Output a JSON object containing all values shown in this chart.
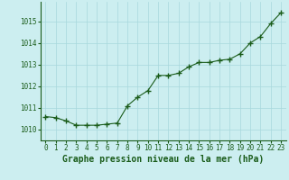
{
  "x": [
    0,
    1,
    2,
    3,
    4,
    5,
    6,
    7,
    8,
    9,
    10,
    11,
    12,
    13,
    14,
    15,
    16,
    17,
    18,
    19,
    20,
    21,
    22,
    23
  ],
  "y": [
    1010.6,
    1010.55,
    1010.4,
    1010.2,
    1010.2,
    1010.2,
    1010.25,
    1010.3,
    1011.1,
    1011.5,
    1011.8,
    1012.5,
    1012.5,
    1012.6,
    1012.9,
    1013.1,
    1013.1,
    1013.2,
    1013.25,
    1013.5,
    1014.0,
    1014.3,
    1014.9,
    1015.4
  ],
  "line_color": "#1a5c1a",
  "marker": "+",
  "marker_size": 4,
  "marker_lw": 1.0,
  "background_color": "#cceef0",
  "grid_color": "#a8d8dc",
  "xlabel": "Graphe pression niveau de la mer (hPa)",
  "xlabel_fontsize": 7,
  "xlabel_color": "#1a5c1a",
  "ylim": [
    1009.5,
    1015.9
  ],
  "yticks": [
    1010,
    1011,
    1012,
    1013,
    1014,
    1015
  ],
  "xticks": [
    0,
    1,
    2,
    3,
    4,
    5,
    6,
    7,
    8,
    9,
    10,
    11,
    12,
    13,
    14,
    15,
    16,
    17,
    18,
    19,
    20,
    21,
    22,
    23
  ],
  "tick_color": "#1a5c1a",
  "tick_fontsize": 5.5,
  "linewidth": 0.8
}
